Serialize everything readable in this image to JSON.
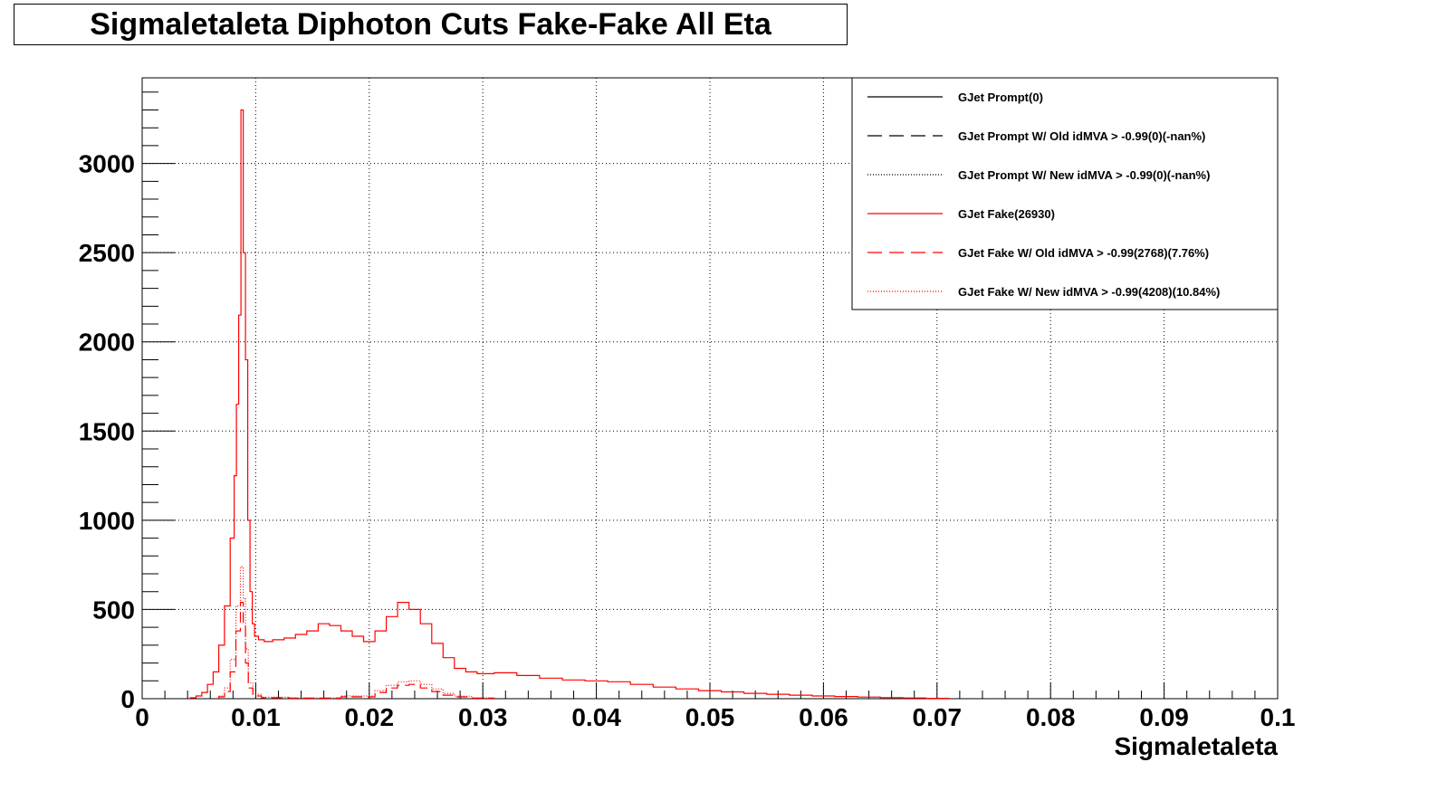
{
  "title": "Sigmaletaleta Diphoton Cuts Fake-Fake All Eta",
  "chart_data": {
    "type": "histogram",
    "title": "Sigmaletaleta Diphoton Cuts Fake-Fake All Eta",
    "xlabel": "Sigmaletaleta",
    "ylabel": "",
    "xlim": [
      0,
      0.1
    ],
    "ylim": [
      0,
      3480
    ],
    "grid": true,
    "legend_position": "top-right",
    "x_ticks": [
      "0",
      "0.01",
      "0.02",
      "0.03",
      "0.04",
      "0.05",
      "0.06",
      "0.07",
      "0.08",
      "0.09",
      "0.1"
    ],
    "y_ticks": [
      "0",
      "500",
      "1000",
      "1500",
      "2000",
      "2500",
      "3000"
    ],
    "series": [
      {
        "name": "GJet Prompt(0)",
        "color": "#000000",
        "style": "solid",
        "x": [],
        "y": []
      },
      {
        "name": "GJet Prompt W/ Old idMVA > -0.99(0)(-nan%)",
        "color": "#000000",
        "style": "dashed",
        "x": [],
        "y": []
      },
      {
        "name": "GJet Prompt W/ New idMVA > -0.99(0)(-nan%)",
        "color": "#000000",
        "style": "dotted",
        "x": [],
        "y": []
      },
      {
        "name": "GJet Fake(26930)",
        "color": "#ff0000",
        "style": "solid",
        "x": [
          0.0045,
          0.005,
          0.0055,
          0.006,
          0.0065,
          0.007,
          0.0075,
          0.008,
          0.0082,
          0.0084,
          0.0086,
          0.0088,
          0.009,
          0.0092,
          0.0094,
          0.0096,
          0.0098,
          0.01,
          0.0105,
          0.011,
          0.012,
          0.013,
          0.014,
          0.015,
          0.016,
          0.017,
          0.018,
          0.019,
          0.02,
          0.021,
          0.022,
          0.023,
          0.024,
          0.025,
          0.026,
          0.027,
          0.028,
          0.029,
          0.03,
          0.032,
          0.034,
          0.036,
          0.038,
          0.04,
          0.042,
          0.044,
          0.046,
          0.048,
          0.05,
          0.052,
          0.054,
          0.056,
          0.058,
          0.06,
          0.062,
          0.064,
          0.066,
          0.068,
          0.07
        ],
        "y": [
          5,
          15,
          35,
          80,
          150,
          300,
          520,
          900,
          1250,
          1650,
          2150,
          3300,
          2500,
          1900,
          1000,
          600,
          420,
          350,
          330,
          320,
          330,
          340,
          360,
          380,
          420,
          410,
          380,
          350,
          320,
          380,
          460,
          540,
          500,
          420,
          310,
          230,
          170,
          150,
          140,
          145,
          130,
          115,
          105,
          100,
          95,
          80,
          65,
          55,
          45,
          38,
          30,
          25,
          20,
          15,
          12,
          9,
          6,
          4,
          2
        ]
      },
      {
        "name": "GJet Fake W/ Old idMVA > -0.99(2768)(7.76%)",
        "color": "#ff0000",
        "style": "dashed",
        "x": [
          0.007,
          0.0075,
          0.008,
          0.0085,
          0.0088,
          0.009,
          0.0092,
          0.0095,
          0.01,
          0.011,
          0.015,
          0.02,
          0.021,
          0.022,
          0.023,
          0.024,
          0.025,
          0.026,
          0.027,
          0.028,
          0.03
        ],
        "y": [
          10,
          40,
          150,
          380,
          540,
          420,
          200,
          60,
          15,
          5,
          3,
          10,
          35,
          60,
          75,
          80,
          60,
          40,
          20,
          10,
          3
        ]
      },
      {
        "name": "GJet Fake W/ New idMVA > -0.99(4208)(10.84%)",
        "color": "#ff0000",
        "style": "dotted",
        "x": [
          0.007,
          0.0075,
          0.008,
          0.0085,
          0.0088,
          0.009,
          0.0092,
          0.0095,
          0.01,
          0.011,
          0.015,
          0.02,
          0.021,
          0.022,
          0.023,
          0.024,
          0.025,
          0.026,
          0.027,
          0.028,
          0.03
        ],
        "y": [
          15,
          60,
          220,
          520,
          740,
          560,
          280,
          90,
          25,
          8,
          4,
          15,
          45,
          75,
          95,
          100,
          80,
          55,
          30,
          14,
          4
        ]
      }
    ]
  }
}
